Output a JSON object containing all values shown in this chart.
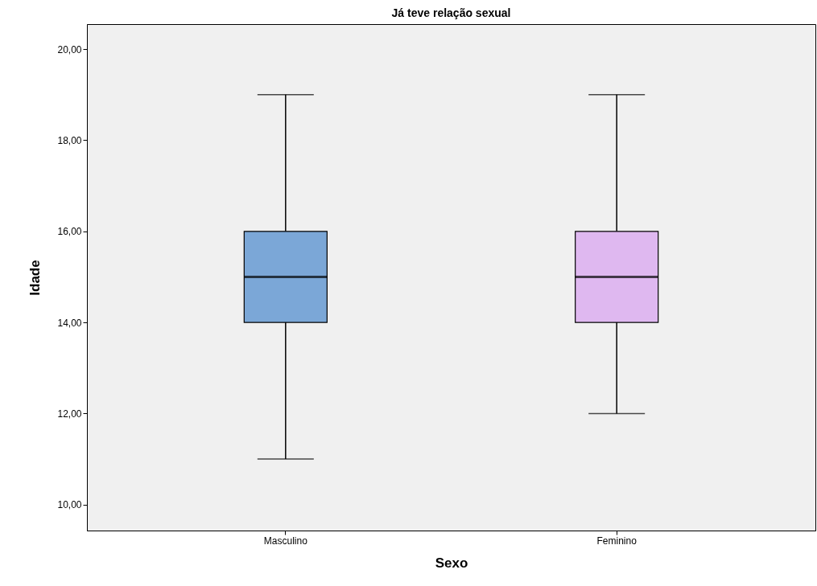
{
  "chart_data": {
    "type": "box",
    "title": "Já teve relação sexual",
    "xlabel": "Sexo",
    "ylabel": "Idade",
    "categories": [
      "Masculino",
      "Feminino"
    ],
    "boxes": [
      {
        "low": 11,
        "q1": 14,
        "median": 15,
        "q3": 16,
        "high": 19
      },
      {
        "low": 12,
        "q1": 14,
        "median": 15,
        "q3": 16,
        "high": 19
      }
    ],
    "colors": [
      "#7ba7d7",
      "#dfb8f0"
    ],
    "ylim": [
      9.43,
      20.55
    ],
    "yticks": [
      {
        "value": 10,
        "label": "10,00"
      },
      {
        "value": 12,
        "label": "12,00"
      },
      {
        "value": 14,
        "label": "14,00"
      },
      {
        "value": 16,
        "label": "16,00"
      },
      {
        "value": 18,
        "label": "18,00"
      },
      {
        "value": 20,
        "label": "20,00"
      }
    ]
  }
}
